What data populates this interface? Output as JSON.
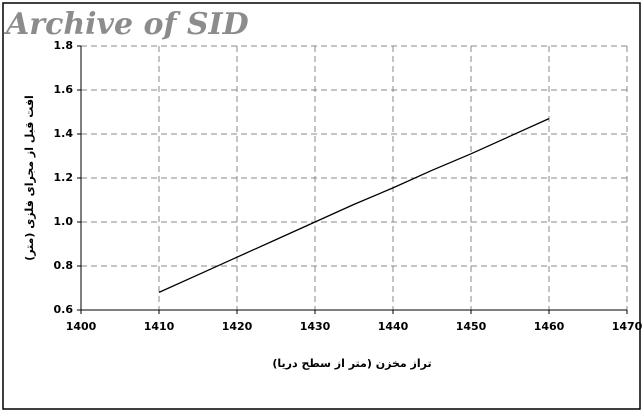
{
  "chart_data": {
    "type": "line",
    "watermark": "Archive of SID",
    "xlabel": "تراز مخزن (متر از سطح دریا)",
    "ylabel": "افت قبل از مجرای فلزی (متر)",
    "x": [
      1410,
      1415,
      1420,
      1425,
      1430,
      1435,
      1440,
      1445,
      1450,
      1455,
      1460
    ],
    "series": [
      {
        "color": "#000000",
        "values": [
          0.68,
          0.76,
          0.84,
          0.92,
          1.0,
          1.08,
          1.155,
          1.235,
          1.31,
          1.39,
          1.47
        ]
      }
    ],
    "xlim": [
      1400,
      1470
    ],
    "xticks": [
      1400,
      1410,
      1420,
      1430,
      1440,
      1450,
      1460,
      1470
    ],
    "ylim": [
      0.6,
      1.8
    ],
    "yticks": [
      0.6,
      0.8,
      {
        "value": 1.0,
        "label": "1.0"
      },
      1.2,
      1.4,
      1.6,
      1.8
    ],
    "grid": true
  }
}
